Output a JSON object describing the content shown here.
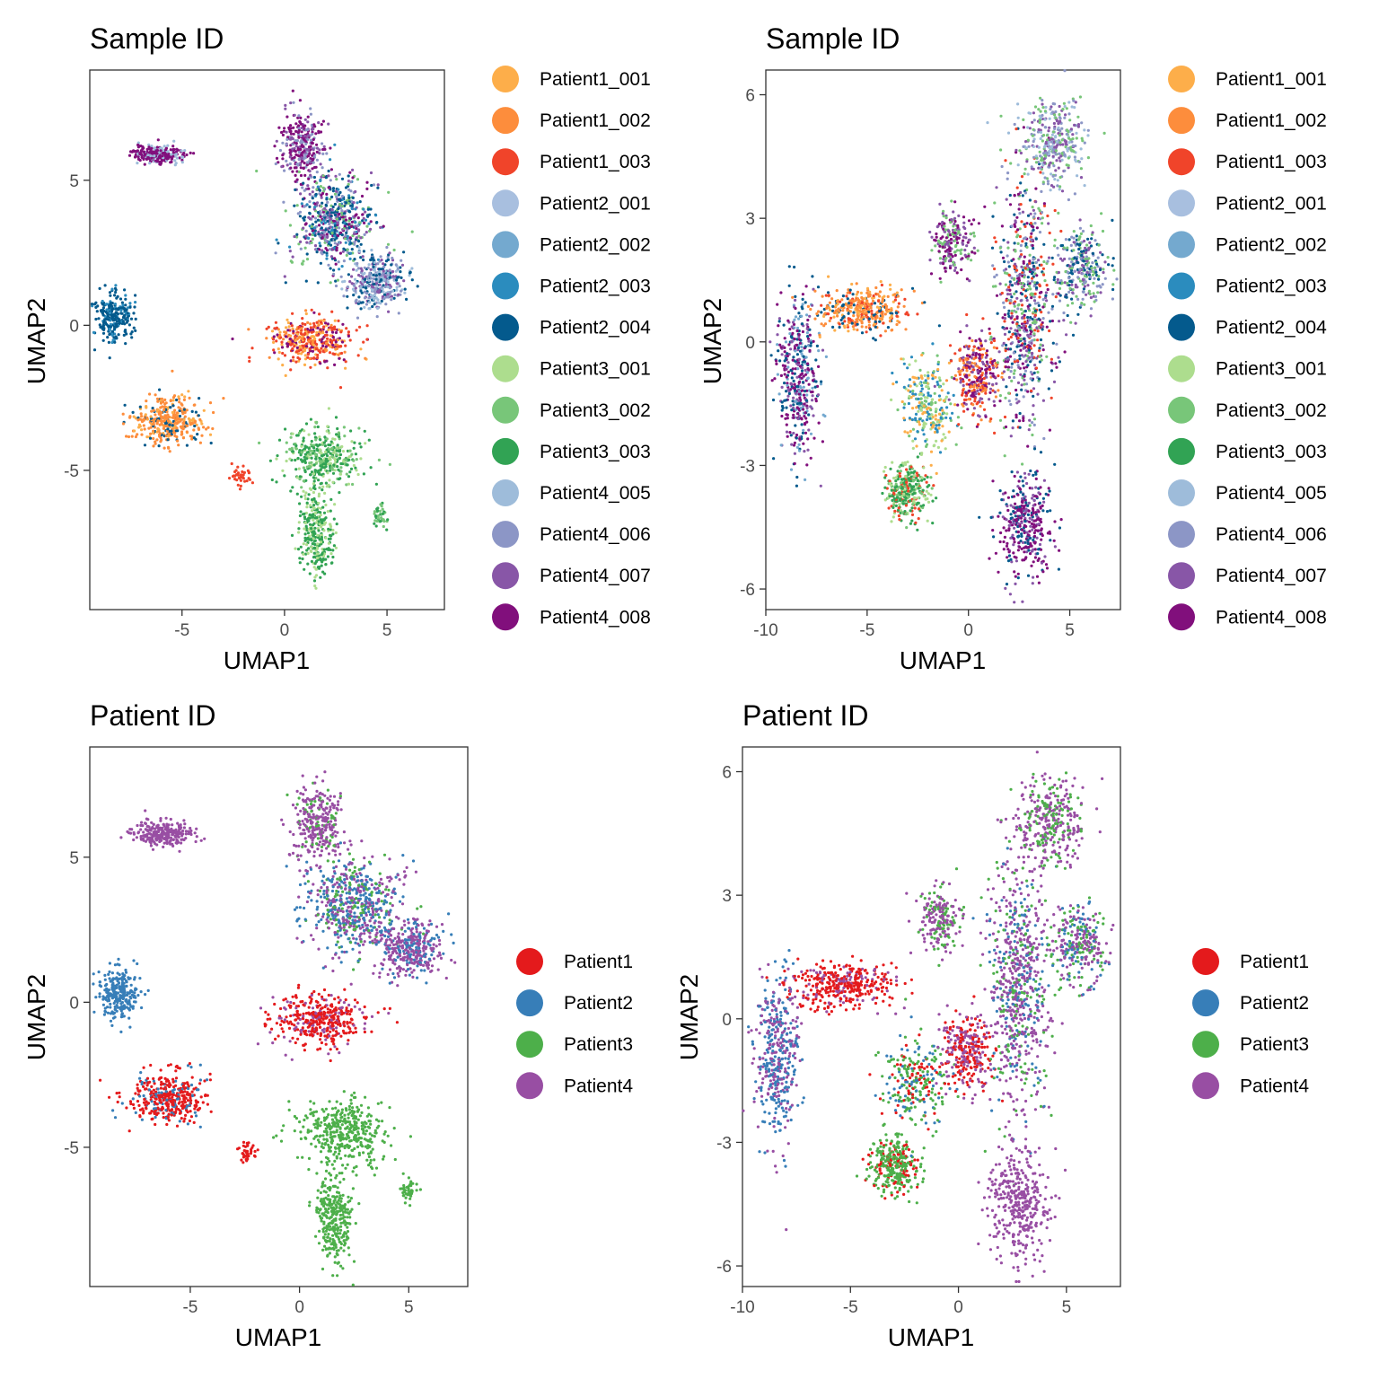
{
  "palettes": {
    "samples": [
      {
        "name": "Patient1_001",
        "color": "#fdae4a"
      },
      {
        "name": "Patient1_002",
        "color": "#fd8d3c"
      },
      {
        "name": "Patient1_003",
        "color": "#f0442a"
      },
      {
        "name": "Patient2_001",
        "color": "#a8bfdf"
      },
      {
        "name": "Patient2_002",
        "color": "#74a9cf"
      },
      {
        "name": "Patient2_003",
        "color": "#2b8cbe"
      },
      {
        "name": "Patient2_004",
        "color": "#045a8d"
      },
      {
        "name": "Patient3_001",
        "color": "#addd8e"
      },
      {
        "name": "Patient3_002",
        "color": "#78c679"
      },
      {
        "name": "Patient3_003",
        "color": "#31a354"
      },
      {
        "name": "Patient4_005",
        "color": "#9ebcda"
      },
      {
        "name": "Patient4_006",
        "color": "#8c96c6"
      },
      {
        "name": "Patient4_007",
        "color": "#8856a7"
      },
      {
        "name": "Patient4_008",
        "color": "#810f7c"
      }
    ],
    "patients": [
      {
        "name": "Patient1",
        "color": "#e41a1c"
      },
      {
        "name": "Patient2",
        "color": "#377eb8"
      },
      {
        "name": "Patient3",
        "color": "#4daf4a"
      },
      {
        "name": "Patient4",
        "color": "#984ea3"
      }
    ]
  },
  "chart_data": [
    {
      "id": "sample-umap-a",
      "type": "scatter",
      "title": "Sample ID",
      "xlabel": "UMAP1",
      "ylabel": "UMAP2",
      "legend_position": "right",
      "grid": false,
      "xlim": [
        -9.5,
        7.8
      ],
      "ylim": [
        -9.8,
        8.8
      ],
      "xticks": [
        {
          "v": -5,
          "label": "-5"
        },
        {
          "v": 0,
          "label": "0"
        },
        {
          "v": 5,
          "label": "5"
        }
      ],
      "yticks": [
        {
          "v": -5,
          "label": "-5"
        },
        {
          "v": 0,
          "label": "0"
        },
        {
          "v": 5,
          "label": "5"
        }
      ],
      "color_by": "samples",
      "clusters": [
        {
          "x": -6.2,
          "y": 5.9,
          "rx": 1.1,
          "ry": 0.3,
          "n": 240,
          "colors": [
            "Patient4_008",
            "Patient4_008",
            "Patient4_008",
            "Patient4_005"
          ]
        },
        {
          "x": -8.3,
          "y": 0.3,
          "rx": 0.8,
          "ry": 0.8,
          "n": 260,
          "colors": [
            "Patient2_004",
            "Patient2_004",
            "Patient2_004",
            "Patient2_003"
          ]
        },
        {
          "x": -5.7,
          "y": -3.3,
          "rx": 1.5,
          "ry": 0.8,
          "n": 380,
          "colors": [
            "Patient1_002",
            "Patient1_002",
            "Patient1_002",
            "Patient1_001",
            "Patient2_004"
          ]
        },
        {
          "x": 0.9,
          "y": 6.2,
          "rx": 0.9,
          "ry": 1.2,
          "n": 300,
          "colors": [
            "Patient4_008",
            "Patient4_008",
            "Patient4_007",
            "Patient4_006"
          ]
        },
        {
          "x": 2.4,
          "y": 3.6,
          "rx": 1.8,
          "ry": 1.4,
          "n": 620,
          "colors": [
            "Patient4_008",
            "Patient4_007",
            "Patient4_006",
            "Patient2_004",
            "Patient2_004",
            "Patient2_003",
            "Patient3_002"
          ]
        },
        {
          "x": 4.6,
          "y": 1.5,
          "rx": 1.4,
          "ry": 0.8,
          "n": 360,
          "colors": [
            "Patient4_006",
            "Patient4_007",
            "Patient2_004",
            "Patient4_005"
          ]
        },
        {
          "x": 1.3,
          "y": -0.5,
          "rx": 1.8,
          "ry": 0.7,
          "n": 400,
          "colors": [
            "Patient1_003",
            "Patient1_003",
            "Patient1_002",
            "Patient1_001",
            "Patient4_008"
          ]
        },
        {
          "x": 1.8,
          "y": -4.5,
          "rx": 1.7,
          "ry": 0.9,
          "n": 380,
          "colors": [
            "Patient3_003",
            "Patient3_003",
            "Patient3_002",
            "Patient3_001"
          ]
        },
        {
          "x": 1.5,
          "y": -7.2,
          "rx": 0.8,
          "ry": 1.5,
          "n": 300,
          "colors": [
            "Patient3_003",
            "Patient3_003",
            "Patient3_001"
          ]
        },
        {
          "x": -2.2,
          "y": -5.2,
          "rx": 0.4,
          "ry": 0.3,
          "n": 40,
          "colors": [
            "Patient1_003"
          ]
        },
        {
          "x": 4.7,
          "y": -6.5,
          "rx": 0.3,
          "ry": 0.4,
          "n": 40,
          "colors": [
            "Patient3_003",
            "Patient3_002"
          ]
        }
      ]
    },
    {
      "id": "sample-umap-b",
      "type": "scatter",
      "title": "Sample ID",
      "xlabel": "UMAP1",
      "ylabel": "UMAP2",
      "legend_position": "right",
      "grid": false,
      "xlim": [
        -10.0,
        7.5
      ],
      "ylim": [
        -6.5,
        6.6
      ],
      "xticks": [
        {
          "v": -10,
          "label": "-10"
        },
        {
          "v": -5,
          "label": "-5"
        },
        {
          "v": 0,
          "label": "0"
        },
        {
          "v": 5,
          "label": "5"
        }
      ],
      "yticks": [
        {
          "v": -6,
          "label": "-6"
        },
        {
          "v": -3,
          "label": "-3"
        },
        {
          "v": 0,
          "label": "0"
        },
        {
          "v": 3,
          "label": "3"
        },
        {
          "v": 6,
          "label": "6"
        }
      ],
      "color_by": "samples",
      "clusters": [
        {
          "x": -8.4,
          "y": -0.8,
          "rx": 0.9,
          "ry": 1.8,
          "n": 420,
          "colors": [
            "Patient4_008",
            "Patient4_008",
            "Patient4_007",
            "Patient2_004",
            "Patient2_002"
          ]
        },
        {
          "x": -5.3,
          "y": 0.8,
          "rx": 2.1,
          "ry": 0.5,
          "n": 380,
          "colors": [
            "Patient1_002",
            "Patient1_001",
            "Patient1_002",
            "Patient1_003",
            "Patient2_004"
          ]
        },
        {
          "x": -3.0,
          "y": -3.6,
          "rx": 1.0,
          "ry": 0.6,
          "n": 320,
          "colors": [
            "Patient3_003",
            "Patient3_003",
            "Patient3_002",
            "Patient3_001",
            "Patient1_003"
          ]
        },
        {
          "x": -2.0,
          "y": -1.5,
          "rx": 1.3,
          "ry": 1.0,
          "n": 260,
          "colors": [
            "Patient3_002",
            "Patient3_001",
            "Patient1_001",
            "Patient2_003"
          ]
        },
        {
          "x": 0.4,
          "y": -0.8,
          "rx": 1.0,
          "ry": 0.9,
          "n": 300,
          "colors": [
            "Patient1_003",
            "Patient4_008",
            "Patient4_007",
            "Patient1_002"
          ]
        },
        {
          "x": -0.8,
          "y": 2.4,
          "rx": 0.9,
          "ry": 0.7,
          "n": 200,
          "colors": [
            "Patient4_008",
            "Patient4_007",
            "Patient3_002"
          ]
        },
        {
          "x": 2.8,
          "y": 0.8,
          "rx": 1.3,
          "ry": 2.8,
          "n": 700,
          "colors": [
            "Patient4_007",
            "Patient4_008",
            "Patient4_006",
            "Patient2_004",
            "Patient3_002",
            "Patient1_003"
          ]
        },
        {
          "x": 4.2,
          "y": 4.8,
          "rx": 1.5,
          "ry": 1.0,
          "n": 340,
          "colors": [
            "Patient4_006",
            "Patient4_005",
            "Patient4_007",
            "Patient3_002"
          ]
        },
        {
          "x": 5.6,
          "y": 1.8,
          "rx": 1.2,
          "ry": 0.9,
          "n": 280,
          "colors": [
            "Patient4_006",
            "Patient3_002",
            "Patient2_004",
            "Patient4_007"
          ]
        },
        {
          "x": 2.8,
          "y": -4.5,
          "rx": 1.2,
          "ry": 1.2,
          "n": 360,
          "colors": [
            "Patient4_008",
            "Patient4_007",
            "Patient4_008",
            "Patient2_004"
          ]
        }
      ]
    },
    {
      "id": "patient-umap-a",
      "type": "scatter",
      "title": "Patient ID",
      "xlabel": "UMAP1",
      "ylabel": "UMAP2",
      "legend_position": "right",
      "grid": false,
      "xlim": [
        -9.6,
        7.7
      ],
      "ylim": [
        -9.8,
        8.8
      ],
      "xticks": [
        {
          "v": -5,
          "label": "-5"
        },
        {
          "v": 0,
          "label": "0"
        },
        {
          "v": 5,
          "label": "5"
        }
      ],
      "yticks": [
        {
          "v": -5,
          "label": "-5"
        },
        {
          "v": 0,
          "label": "0"
        },
        {
          "v": 5,
          "label": "5"
        }
      ],
      "color_by": "patients",
      "clusters": [
        {
          "x": -6.2,
          "y": 5.8,
          "rx": 1.2,
          "ry": 0.4,
          "n": 240,
          "colors": [
            "Patient4"
          ]
        },
        {
          "x": -8.3,
          "y": 0.3,
          "rx": 0.8,
          "ry": 0.8,
          "n": 260,
          "colors": [
            "Patient2"
          ]
        },
        {
          "x": -6.0,
          "y": -3.3,
          "rx": 1.6,
          "ry": 0.8,
          "n": 380,
          "colors": [
            "Patient1",
            "Patient1",
            "Patient1",
            "Patient2"
          ]
        },
        {
          "x": 0.8,
          "y": 6.2,
          "rx": 1.0,
          "ry": 1.2,
          "n": 300,
          "colors": [
            "Patient4",
            "Patient4",
            "Patient4",
            "Patient3"
          ]
        },
        {
          "x": 2.5,
          "y": 3.4,
          "rx": 1.9,
          "ry": 1.5,
          "n": 620,
          "colors": [
            "Patient4",
            "Patient4",
            "Patient2",
            "Patient2",
            "Patient3"
          ]
        },
        {
          "x": 5.0,
          "y": 1.8,
          "rx": 1.4,
          "ry": 0.9,
          "n": 360,
          "colors": [
            "Patient4",
            "Patient4",
            "Patient2"
          ]
        },
        {
          "x": 0.9,
          "y": -0.6,
          "rx": 1.9,
          "ry": 0.8,
          "n": 400,
          "colors": [
            "Patient1",
            "Patient1",
            "Patient1",
            "Patient4"
          ]
        },
        {
          "x": 2.0,
          "y": -4.5,
          "rx": 1.8,
          "ry": 1.0,
          "n": 380,
          "colors": [
            "Patient3"
          ]
        },
        {
          "x": 1.6,
          "y": -7.4,
          "rx": 0.8,
          "ry": 1.5,
          "n": 300,
          "colors": [
            "Patient3"
          ]
        },
        {
          "x": -2.4,
          "y": -5.2,
          "rx": 0.4,
          "ry": 0.3,
          "n": 40,
          "colors": [
            "Patient1"
          ]
        },
        {
          "x": 5.0,
          "y": -6.5,
          "rx": 0.3,
          "ry": 0.4,
          "n": 40,
          "colors": [
            "Patient3"
          ]
        }
      ]
    },
    {
      "id": "patient-umap-b",
      "type": "scatter",
      "title": "Patient ID",
      "xlabel": "UMAP1",
      "ylabel": "UMAP2",
      "legend_position": "right",
      "grid": false,
      "xlim": [
        -10.0,
        7.5
      ],
      "ylim": [
        -6.5,
        6.6
      ],
      "xticks": [
        {
          "v": -10,
          "label": "-10"
        },
        {
          "v": -5,
          "label": "-5"
        },
        {
          "v": 0,
          "label": "0"
        },
        {
          "v": 5,
          "label": "5"
        }
      ],
      "yticks": [
        {
          "v": -6,
          "label": "-6"
        },
        {
          "v": -3,
          "label": "-3"
        },
        {
          "v": 0,
          "label": "0"
        },
        {
          "v": 3,
          "label": "3"
        },
        {
          "v": 6,
          "label": "6"
        }
      ],
      "color_by": "patients",
      "clusters": [
        {
          "x": -8.4,
          "y": -0.8,
          "rx": 0.9,
          "ry": 1.8,
          "n": 420,
          "colors": [
            "Patient4",
            "Patient4",
            "Patient2",
            "Patient2"
          ]
        },
        {
          "x": -5.3,
          "y": 0.8,
          "rx": 2.1,
          "ry": 0.5,
          "n": 380,
          "colors": [
            "Patient1",
            "Patient1",
            "Patient1",
            "Patient4"
          ]
        },
        {
          "x": -3.0,
          "y": -3.6,
          "rx": 1.0,
          "ry": 0.6,
          "n": 320,
          "colors": [
            "Patient3",
            "Patient3",
            "Patient3",
            "Patient1"
          ]
        },
        {
          "x": -2.0,
          "y": -1.5,
          "rx": 1.3,
          "ry": 1.0,
          "n": 260,
          "colors": [
            "Patient3",
            "Patient3",
            "Patient1",
            "Patient2"
          ]
        },
        {
          "x": 0.4,
          "y": -0.8,
          "rx": 1.0,
          "ry": 0.9,
          "n": 300,
          "colors": [
            "Patient1",
            "Patient4",
            "Patient1",
            "Patient4"
          ]
        },
        {
          "x": -0.8,
          "y": 2.4,
          "rx": 0.9,
          "ry": 0.7,
          "n": 200,
          "colors": [
            "Patient4",
            "Patient4",
            "Patient3"
          ]
        },
        {
          "x": 2.8,
          "y": 0.8,
          "rx": 1.3,
          "ry": 2.8,
          "n": 700,
          "colors": [
            "Patient4",
            "Patient4",
            "Patient4",
            "Patient2",
            "Patient3"
          ]
        },
        {
          "x": 4.2,
          "y": 4.8,
          "rx": 1.5,
          "ry": 1.0,
          "n": 340,
          "colors": [
            "Patient4",
            "Patient4",
            "Patient3"
          ]
        },
        {
          "x": 5.6,
          "y": 1.8,
          "rx": 1.2,
          "ry": 0.9,
          "n": 280,
          "colors": [
            "Patient4",
            "Patient3",
            "Patient2",
            "Patient4"
          ]
        },
        {
          "x": 2.8,
          "y": -4.5,
          "rx": 1.2,
          "ry": 1.2,
          "n": 360,
          "colors": [
            "Patient4"
          ]
        }
      ]
    }
  ]
}
